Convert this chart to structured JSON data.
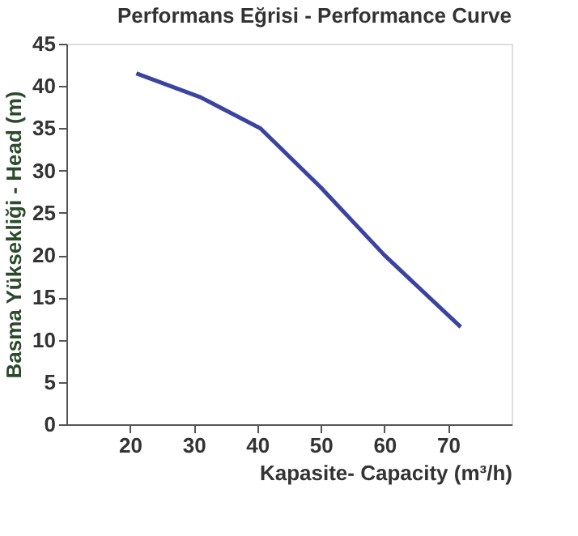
{
  "chart_data": {
    "type": "line",
    "title": "Performans Eğrisi - Performance Curve",
    "xlabel": "Kapasite- Capacity (m³/h)",
    "ylabel": "Basma Yüksekliği - Head (m)",
    "x": [
      21,
      31,
      40.5,
      50,
      60,
      72
    ],
    "series": [
      {
        "color": "#3a44a0",
        "values": [
          41.5,
          38.7,
          35,
          28,
          20,
          11.5
        ]
      }
    ],
    "xlim": [
      10,
      80
    ],
    "xticks": [
      20,
      30,
      40,
      50,
      60,
      70
    ],
    "ylim": [
      0,
      45
    ],
    "yticks": [
      0,
      5,
      10,
      15,
      20,
      25,
      30,
      35,
      40,
      45
    ],
    "grid": false,
    "marker": "none",
    "line_style": "solid"
  }
}
